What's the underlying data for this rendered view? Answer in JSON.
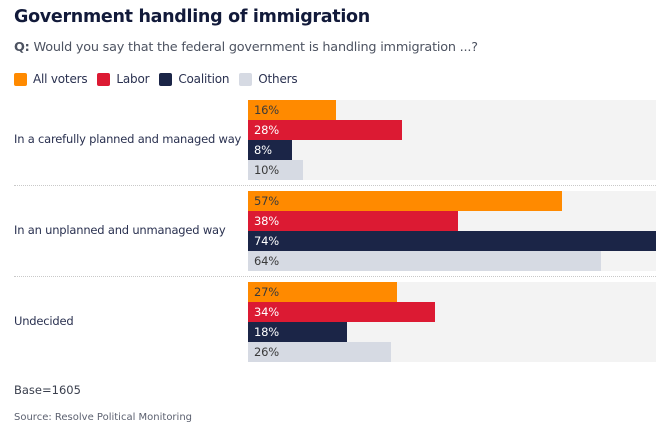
{
  "title": "Government handling of immigration",
  "question_prefix": "Q:",
  "question": "Would you say that the federal government is handling immigration ...?",
  "base": "Base=1605",
  "source": "Source: Resolve Political Monitoring",
  "chart_data": {
    "type": "bar",
    "orientation": "horizontal",
    "title": "Government handling of immigration",
    "subtitle": "Q: Would you say that the federal government is handling immigration ...?",
    "xlabel": "",
    "ylabel": "",
    "xlim": [
      0,
      74
    ],
    "value_suffix": "%",
    "grid": false,
    "legend_position": "top-left",
    "categories": [
      "In a carefully planned and managed way",
      "In an unplanned and unmanaged way",
      "Undecided"
    ],
    "series": [
      {
        "name": "All voters",
        "color": "#ff8a00",
        "label_color": "#3a3a3a",
        "values": [
          16,
          57,
          27
        ]
      },
      {
        "name": "Labor",
        "color": "#dc1a33",
        "label_color": "#ffffff",
        "values": [
          28,
          38,
          34
        ]
      },
      {
        "name": "Coalition",
        "color": "#1b2547",
        "label_color": "#ffffff",
        "values": [
          8,
          74,
          18
        ]
      },
      {
        "name": "Others",
        "color": "#d6dae3",
        "label_color": "#3a3a3a",
        "values": [
          10,
          64,
          26
        ]
      }
    ],
    "notes": [
      "Base=1605",
      "Source: Resolve Political Monitoring"
    ]
  }
}
